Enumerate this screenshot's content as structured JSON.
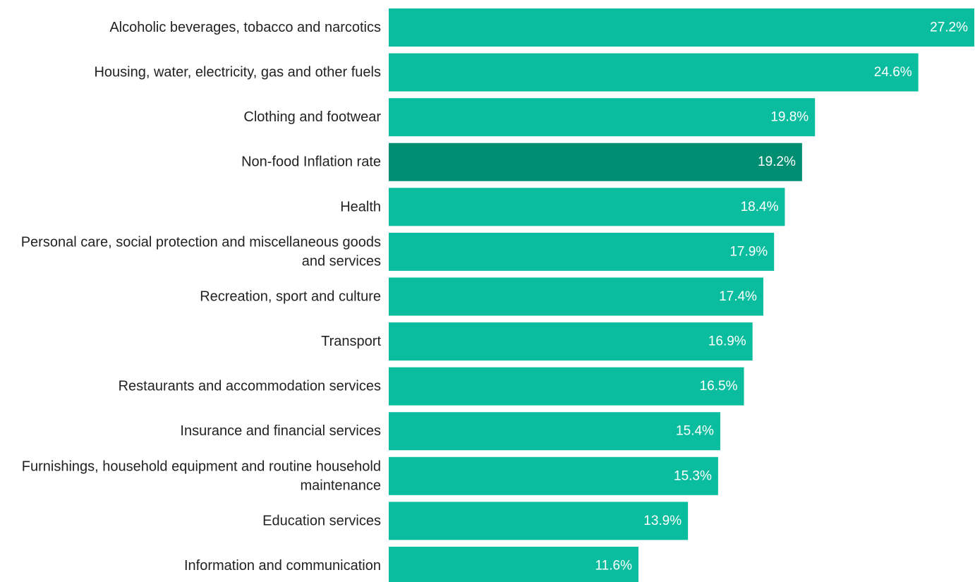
{
  "chart_data": {
    "type": "bar",
    "orientation": "horizontal",
    "categories": [
      "Alcoholic beverages, tobacco and narcotics",
      "Housing, water, electricity, gas and other fuels",
      "Clothing and footwear",
      "Non-food Inflation rate",
      "Health",
      "Personal care, social protection and miscellaneous goods and services",
      "Recreation, sport and culture",
      "Transport",
      "Restaurants and accommodation services",
      "Insurance and financial services",
      "Furnishings, household equipment and routine household maintenance",
      "Education services",
      "Information and communication"
    ],
    "values": [
      27.2,
      24.6,
      19.8,
      19.2,
      18.4,
      17.9,
      17.4,
      16.9,
      16.5,
      15.4,
      15.3,
      13.9,
      11.6
    ],
    "value_labels": [
      "27.2%",
      "24.6%",
      "19.8%",
      "19.2%",
      "18.4%",
      "17.9%",
      "17.4%",
      "16.9%",
      "16.5%",
      "15.4%",
      "15.3%",
      "13.9%",
      "11.6%"
    ],
    "highlight_category": "Non-food Inflation rate",
    "xlim": [
      0,
      27.2
    ],
    "grid": false,
    "title": "",
    "xlabel": "",
    "ylabel": ""
  },
  "colors": {
    "bar": "#0bbd9f",
    "highlight_bar": "#008e72",
    "category_text": "#222222",
    "value_text": "#ffffff",
    "background": "#ffffff"
  }
}
